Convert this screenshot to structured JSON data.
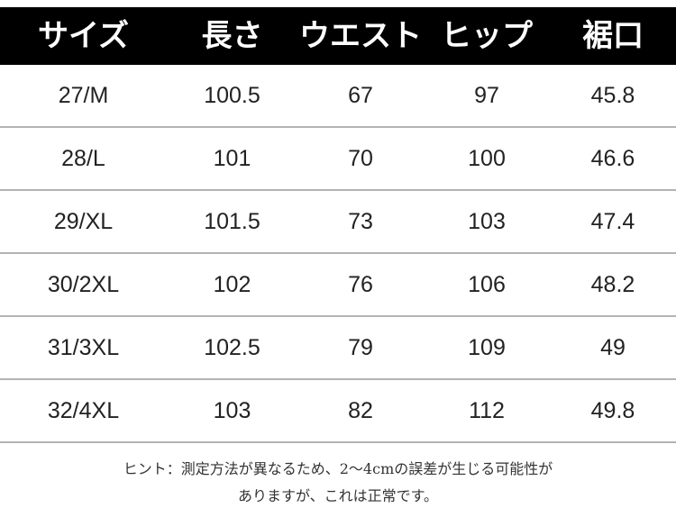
{
  "table": {
    "headers": [
      "サイズ",
      "長さ",
      "ウエスト",
      "ヒップ",
      "裾口"
    ],
    "rows": [
      [
        "27/M",
        "100.5",
        "67",
        "97",
        "45.8"
      ],
      [
        "28/L",
        "101",
        "70",
        "100",
        "46.6"
      ],
      [
        "29/XL",
        "101.5",
        "73",
        "103",
        "47.4"
      ],
      [
        "30/2XL",
        "102",
        "76",
        "106",
        "48.2"
      ],
      [
        "31/3XL",
        "102.5",
        "79",
        "109",
        "49"
      ],
      [
        "32/4XL",
        "103",
        "82",
        "112",
        "49.8"
      ]
    ]
  },
  "note": {
    "line1": "ヒント：測定方法が異なるため、2～4cmの誤差が生じる可能性が",
    "line2": "ありますが、これは正常です。"
  },
  "colors": {
    "header_bg": "#000000",
    "header_text": "#ffffff",
    "divider": "#b3b3b3",
    "body_text": "#222222"
  }
}
